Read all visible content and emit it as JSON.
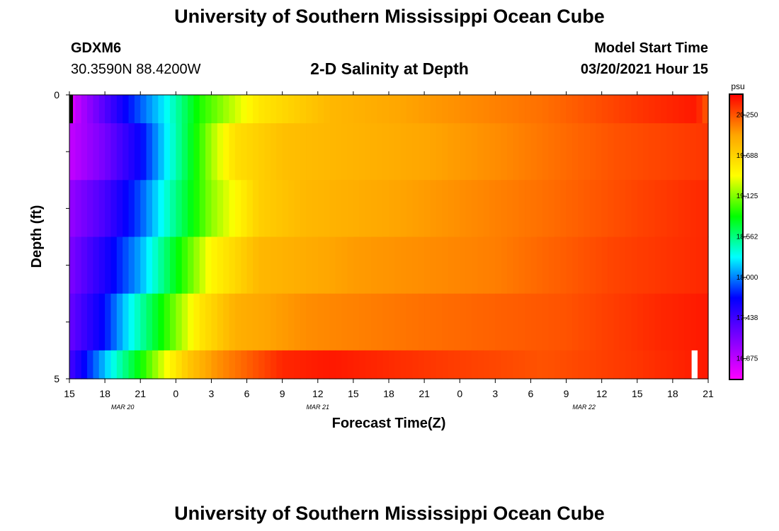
{
  "page": {
    "title_top": "University of Southern Mississippi Ocean Cube",
    "title_bottom": "University of Southern Mississippi Ocean Cube",
    "station_id": "GDXM6",
    "station_coords": "30.3590N 88.4200W",
    "plot_title": "2-D Salinity at Depth",
    "model_start_label": "Model Start Time",
    "model_start_value": "03/20/2021 Hour 15"
  },
  "chart_data": {
    "type": "heatmap",
    "title": "2-D Salinity at Depth",
    "xlabel": "Forecast Time(Z)",
    "ylabel": "Depth (ft)",
    "x_hours_start": 15,
    "x_hours_end": 21,
    "x_range_hours": [
      0,
      54
    ],
    "x_tick_labels": [
      "15",
      "18",
      "21",
      "0",
      "3",
      "6",
      "9",
      "12",
      "15",
      "18",
      "21",
      "0",
      "3",
      "6",
      "9",
      "12",
      "15",
      "18",
      "21"
    ],
    "date_labels": [
      {
        "label": "MAR 20",
        "hour": 4.5
      },
      {
        "label": "MAR 21",
        "hour": 21
      },
      {
        "label": "MAR 22",
        "hour": 43.5
      }
    ],
    "y_range": [
      0,
      5
    ],
    "y_tick_labels": [
      "0",
      "5"
    ],
    "y_minor_ticks": [
      1,
      2,
      3,
      4
    ],
    "colorbar": {
      "unit": "psu",
      "min": 16.594,
      "max": 20.531,
      "labels": [
        "20.250",
        "19.688",
        "19.125",
        "18.562",
        "18.000",
        "17.438",
        "16.875"
      ],
      "label_values": [
        20.25,
        19.688,
        19.125,
        18.562,
        18.0,
        17.438,
        16.875
      ]
    },
    "layers": [
      {
        "depth_top": 0.0,
        "depth_bottom": 0.5,
        "profile": [
          [
            0,
            16.7
          ],
          [
            1,
            16.95
          ],
          [
            3,
            17.35
          ],
          [
            5,
            17.75
          ],
          [
            8,
            18.25
          ],
          [
            11,
            18.9
          ],
          [
            16,
            19.55
          ],
          [
            22,
            19.85
          ],
          [
            30,
            20.0
          ],
          [
            40,
            20.15
          ],
          [
            48,
            20.35
          ],
          [
            53,
            20.45
          ],
          [
            54,
            20.2
          ]
        ]
      },
      {
        "depth_top": 0.5,
        "depth_bottom": 1.5,
        "profile": [
          [
            0,
            16.85
          ],
          [
            3,
            17.2
          ],
          [
            6,
            17.7
          ],
          [
            9,
            18.45
          ],
          [
            12,
            19.2
          ],
          [
            14,
            19.6
          ],
          [
            18,
            19.8
          ],
          [
            26,
            19.9
          ],
          [
            36,
            20.05
          ],
          [
            46,
            20.25
          ],
          [
            54,
            20.35
          ]
        ]
      },
      {
        "depth_top": 1.5,
        "depth_bottom": 2.5,
        "profile": [
          [
            0,
            17.05
          ],
          [
            3,
            17.4
          ],
          [
            6,
            17.9
          ],
          [
            9,
            18.55
          ],
          [
            12,
            19.15
          ],
          [
            16,
            19.7
          ],
          [
            20,
            19.85
          ],
          [
            30,
            20.0
          ],
          [
            40,
            20.15
          ],
          [
            48,
            20.3
          ],
          [
            54,
            20.4
          ]
        ]
      },
      {
        "depth_top": 2.5,
        "depth_bottom": 3.5,
        "profile": [
          [
            0,
            17.15
          ],
          [
            3,
            17.6
          ],
          [
            6,
            18.1
          ],
          [
            9,
            18.8
          ],
          [
            12,
            19.45
          ],
          [
            16,
            19.85
          ],
          [
            24,
            20.0
          ],
          [
            36,
            20.1
          ],
          [
            46,
            20.3
          ],
          [
            54,
            20.4
          ]
        ]
      },
      {
        "depth_top": 3.5,
        "depth_bottom": 4.5,
        "profile": [
          [
            0,
            17.25
          ],
          [
            3,
            17.75
          ],
          [
            5,
            18.25
          ],
          [
            8,
            18.9
          ],
          [
            11,
            19.55
          ],
          [
            14,
            19.9
          ],
          [
            20,
            20.05
          ],
          [
            30,
            20.15
          ],
          [
            42,
            20.25
          ],
          [
            50,
            20.4
          ],
          [
            54,
            20.45
          ]
        ]
      },
      {
        "depth_top": 4.5,
        "depth_bottom": 5.0,
        "profile": [
          [
            0,
            17.4
          ],
          [
            2,
            17.9
          ],
          [
            4,
            18.4
          ],
          [
            6,
            18.85
          ],
          [
            8,
            19.35
          ],
          [
            10,
            19.75
          ],
          [
            12,
            20.0
          ],
          [
            15,
            20.2
          ],
          [
            18,
            20.4
          ],
          [
            22,
            20.45
          ],
          [
            30,
            20.35
          ],
          [
            40,
            20.25
          ],
          [
            48,
            20.35
          ],
          [
            54,
            20.45
          ]
        ]
      }
    ],
    "markers": [
      {
        "color": "#000000",
        "hour_start": 0.0,
        "hour_end": 0.3,
        "depth_top": 0.0,
        "depth_bottom": 0.5
      },
      {
        "color": "#ffffff",
        "hour_start": 52.6,
        "hour_end": 53.1,
        "depth_top": 4.5,
        "depth_bottom": 5.0
      }
    ]
  }
}
